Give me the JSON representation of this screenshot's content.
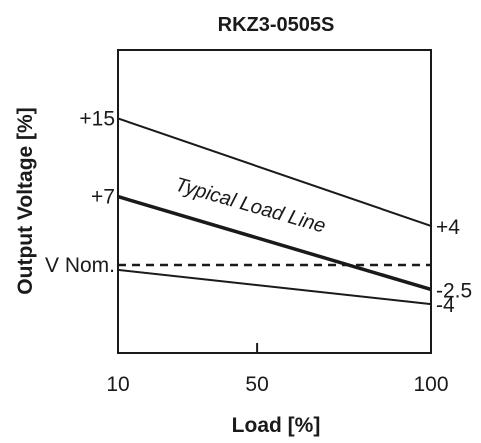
{
  "chart_data": {
    "type": "line",
    "title": "RKZ3-0505S",
    "xlabel": "Load [%]",
    "ylabel": "Output Voltage [%]",
    "x_ticks": [
      "10",
      "50",
      "100"
    ],
    "y_ticks": [
      {
        "label": "+15",
        "value": 15
      },
      {
        "label": "+7",
        "value": 7
      },
      {
        "label": "V Nom.",
        "value": 0
      }
    ],
    "xlim": [
      10,
      100
    ],
    "ylim": [
      -9,
      22
    ],
    "grid": false,
    "series": [
      {
        "key": "upper",
        "x": [
          10,
          100
        ],
        "y": [
          15,
          4
        ],
        "style": "solid",
        "color": "#1a1a1a"
      },
      {
        "key": "typical",
        "name": "Typical Load Line",
        "x": [
          10,
          100
        ],
        "y": [
          7,
          -2.5
        ],
        "style": "solid-thick",
        "color": "#1a1a1a"
      },
      {
        "key": "lower",
        "x": [
          10,
          100
        ],
        "y": [
          -0.5,
          -4
        ],
        "style": "solid",
        "color": "#1a1a1a"
      },
      {
        "key": "nominal",
        "x": [
          10,
          100
        ],
        "y": [
          0,
          0
        ],
        "style": "dashed",
        "color": "#1a1a1a"
      }
    ],
    "end_labels": [
      {
        "series": "upper",
        "text": "+4",
        "value": 4
      },
      {
        "series": "typical",
        "text": "-2.5",
        "value": -2.5
      },
      {
        "series": "lower",
        "text": "-4",
        "value": -4
      }
    ],
    "annotation": "Typical Load Line"
  }
}
